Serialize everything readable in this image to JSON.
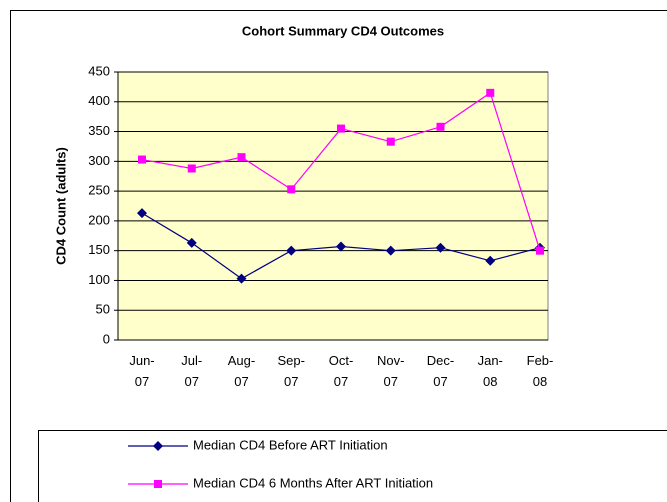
{
  "chart_data": {
    "type": "line",
    "title": "Cohort Summary CD4 Outcomes",
    "y_label": "CD4 Count (adults)",
    "categories": [
      "Jun-07",
      "Jul-07",
      "Aug-07",
      "Sep-07",
      "Oct-07",
      "Nov-07",
      "Dec-07",
      "Jan-08",
      "Feb-08"
    ],
    "series": [
      {
        "name": "Median CD4 Before ART Initiation",
        "color": "#000080",
        "marker": "diamond",
        "values": [
          213,
          163,
          103,
          150,
          157,
          150,
          155,
          133,
          155
        ]
      },
      {
        "name": "Median CD4 6 Months After ART Initiation",
        "color": "#ff00ff",
        "marker": "square",
        "values": [
          303,
          288,
          307,
          253,
          355,
          333,
          358,
          415,
          150
        ]
      }
    ],
    "ylim": [
      0,
      450
    ],
    "yticks": [
      0,
      50,
      100,
      150,
      200,
      250,
      300,
      350,
      400,
      450
    ],
    "grid": true,
    "legend": "bottom"
  }
}
